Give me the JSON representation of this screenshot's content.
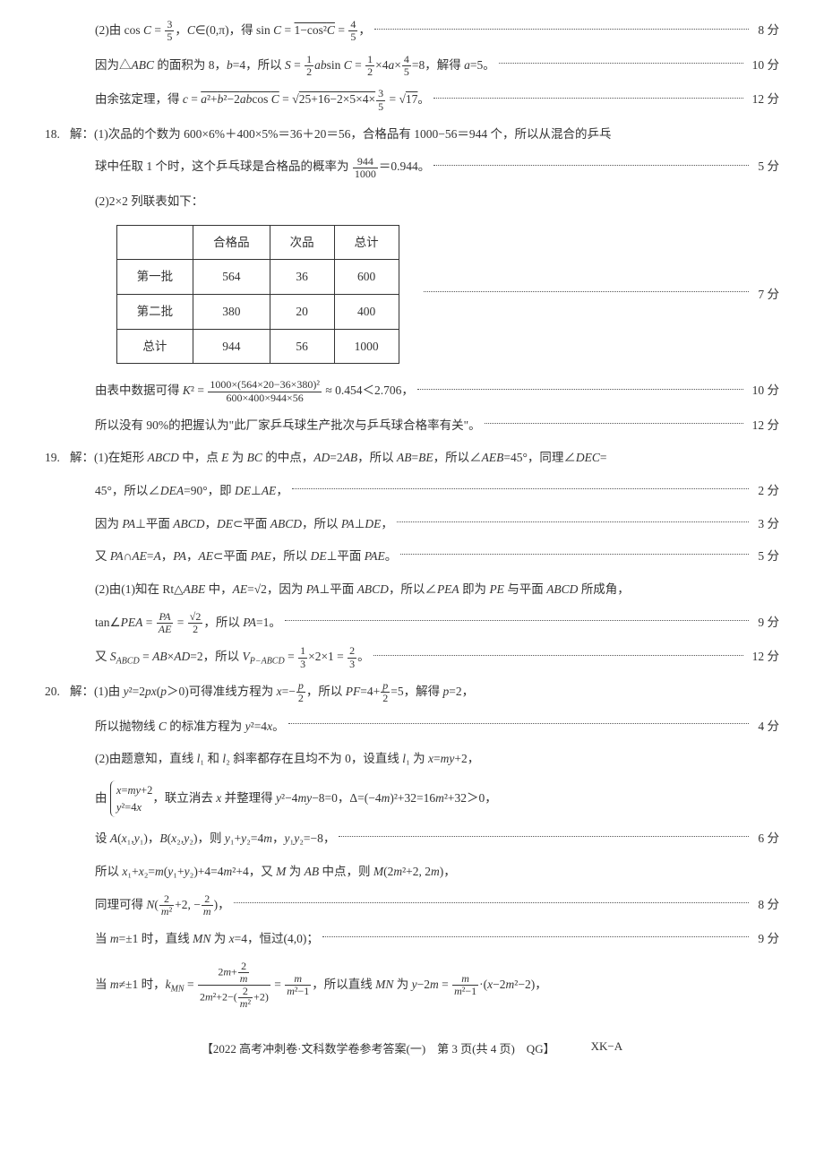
{
  "text_color": "#333333",
  "bg_color": "#ffffff",
  "table_border": "#333333",
  "dots_color": "#555555",
  "base_fontsize": 13.5,
  "q17": {
    "p2_lines": [
      {
        "txt": "(2)由 cos <span class='it'>C</span> = <span class='frac'><span class='num'>3</span><span class='den'>5</span></span>，<span class='it'>C</span>∈(0,π)，得 sin <span class='it'>C</span> = <span class='sqrt'>1−cos²<span class='it'>C</span></span> = <span class='frac'><span class='num'>4</span><span class='den'>5</span></span>，",
        "score": "8 分"
      },
      {
        "txt": "因为△<span class='it'>ABC</span> 的面积为 8，<span class='it'>b</span>=4，所以 <span class='it'>S</span> = <span class='frac'><span class='num'>1</span><span class='den'>2</span></span><span class='it'>ab</span>sin <span class='it'>C</span> = <span class='frac'><span class='num'>1</span><span class='den'>2</span></span>×4<span class='it'>a</span>×<span class='frac'><span class='num'>4</span><span class='den'>5</span></span>=8，解得 <span class='it'>a</span>=5。",
        "score": "10 分"
      },
      {
        "txt": "由余弦定理，得 <span class='it'>c</span> = <span class='sqrt'><span class='it'>a</span>²+<span class='it'>b</span>²−2<span class='it'>ab</span>cos <span class='it'>C</span></span> = <span style='font-size:14px'>√</span><span class='sqrt'>25+16−2×5×4×<span class='frac'><span class='num'>3</span><span class='den'>5</span></span></span> = √<span class='sqrt'>17</span>。",
        "score": "12 分"
      }
    ]
  },
  "q18": {
    "num": "18.",
    "p1": {
      "txt": "解：(1)次品的个数为 600×6%＋400×5%＝36＋20＝56，合格品有 1000−56＝944 个，所以从混合的乒乓",
      "score": ""
    },
    "p1b": {
      "txt": "球中任取 1 个时，这个乒乓球是合格品的概率为 <span class='frac'><span class='num'>944</span><span class='den'>1000</span></span>＝0.944。",
      "score": "5 分"
    },
    "p2_intro": "(2)2×2 列联表如下：",
    "table": {
      "headers": [
        "",
        "合格品",
        "次品",
        "总计"
      ],
      "rows": [
        [
          "第一批",
          "564",
          "36",
          "600"
        ],
        [
          "第二批",
          "380",
          "20",
          "400"
        ],
        [
          "总计",
          "944",
          "56",
          "1000"
        ]
      ],
      "side_score": "7 分"
    },
    "k2": {
      "txt": "由表中数据可得 <span class='it'>K</span>² = <span class='frac'><span class='num'>1000×(564×20−36×380)²</span><span class='den'>600×400×944×56</span></span> ≈ 0.454＜2.706，",
      "score": "10 分"
    },
    "conc": {
      "txt": "所以没有 90%的把握认为\"此厂家乒乓球生产批次与乒乓球合格率有关\"。",
      "score": "12 分"
    }
  },
  "q19": {
    "num": "19.",
    "lines": [
      {
        "txt": "解：(1)在矩形 <span class='it'>ABCD</span> 中，点 <span class='it'>E</span> 为 <span class='it'>BC</span> 的中点，<span class='it'>AD</span>=2<span class='it'>AB</span>，所以 <span class='it'>AB</span>=<span class='it'>BE</span>，所以∠<span class='it'>AEB</span>=45°，同理∠<span class='it'>DEC</span>=",
        "score": ""
      },
      {
        "txt": "45°，所以∠<span class='it'>DEA</span>=90°，即 <span class='it'>DE</span>⊥<span class='it'>AE</span>，",
        "score": "2 分"
      },
      {
        "txt": "因为 <span class='it'>PA</span>⊥平面 <span class='it'>ABCD</span>，<span class='it'>DE</span>⊂平面 <span class='it'>ABCD</span>，所以 <span class='it'>PA</span>⊥<span class='it'>DE</span>，",
        "score": "3 分"
      },
      {
        "txt": "又 <span class='it'>PA</span>∩<span class='it'>AE</span>=<span class='it'>A</span>，<span class='it'>PA</span>，<span class='it'>AE</span>⊂平面 <span class='it'>PAE</span>，所以 <span class='it'>DE</span>⊥平面 <span class='it'>PAE</span>。",
        "score": "5 分"
      },
      {
        "txt": "(2)由(1)知在 Rt△<span class='it'>ABE</span> 中，<span class='it'>AE</span>=√2，因为 <span class='it'>PA</span>⊥平面 <span class='it'>ABCD</span>，所以∠<span class='it'>PEA</span> 即为 <span class='it'>PE</span> 与平面 <span class='it'>ABCD</span> 所成角，",
        "score": ""
      },
      {
        "txt": "tan∠<span class='it'>PEA</span> = <span class='frac'><span class='num'><span class='it'>PA</span></span><span class='den'><span class='it'>AE</span></span></span> = <span class='frac'><span class='num'>√2</span><span class='den'>2</span></span>，所以 <span class='it'>PA</span>=1。",
        "score": "9 分"
      },
      {
        "txt": "又 <span class='it'>S<sub>ABCD</sub></span> = <span class='it'>AB</span>×<span class='it'>AD</span>=2，所以 <span class='it'>V<sub>P−ABCD</sub></span> = <span class='frac'><span class='num'>1</span><span class='den'>3</span></span>×2×1 = <span class='frac'><span class='num'>2</span><span class='den'>3</span></span>。",
        "score": "12 分"
      }
    ]
  },
  "q20": {
    "num": "20.",
    "lines": [
      {
        "txt": "解：(1)由 <span class='it'>y</span>²=2<span class='it'>px</span>(<span class='it'>p</span>＞0)可得准线方程为 <span class='it'>x</span>=−<span class='frac'><span class='num'><span class='it'>p</span></span><span class='den'>2</span></span>，所以 <span class='it'>PF</span>=4+<span class='frac'><span class='num'><span class='it'>p</span></span><span class='den'>2</span></span>=5，解得 <span class='it'>p</span>=2，",
        "score": ""
      },
      {
        "txt": "所以抛物线 <span class='it'>C</span> 的标准方程为 <span class='it'>y</span>²=4<span class='it'>x</span>。",
        "score": "4 分"
      },
      {
        "txt": "(2)由题意知，直线 <span class='it'>l</span>₁ 和 <span class='it'>l</span>₂ 斜率都存在且均不为 0，设直线 <span class='it'>l</span>₁ 为 <span class='it'>x</span>=<span class='it'>my</span>+2，",
        "score": ""
      },
      {
        "txt": "由 <span class='cases'><div><span class='it'>x</span>=<span class='it'>my</span>+2</div><div><span class='it'>y</span>²=4<span class='it'>x</span></div></span>，联立消去 <span class='it'>x</span> 并整理得 <span class='it'>y</span>²−4<span class='it'>my</span>−8=0，Δ=(−4<span class='it'>m</span>)²+32=16<span class='it'>m</span>²+32＞0，",
        "score": ""
      },
      {
        "txt": "设 <span class='it'>A</span>(<span class='it'>x</span>₁,<span class='it'>y</span>₁)，<span class='it'>B</span>(<span class='it'>x</span>₂,<span class='it'>y</span>₂)，则 <span class='it'>y</span>₁+<span class='it'>y</span>₂=4<span class='it'>m</span>，<span class='it'>y</span>₁<span class='it'>y</span>₂=−8，",
        "score": "6 分"
      },
      {
        "txt": "所以 <span class='it'>x</span>₁+<span class='it'>x</span>₂=<span class='it'>m</span>(<span class='it'>y</span>₁+<span class='it'>y</span>₂)+4=4<span class='it'>m</span>²+4，又 <span class='it'>M</span> 为 <span class='it'>AB</span> 中点，则 <span class='it'>M</span>(2<span class='it'>m</span>²+2, 2<span class='it'>m</span>)，",
        "score": ""
      },
      {
        "txt": "同理可得 <span class='it'>N</span>(<span class='frac'><span class='num'>2</span><span class='den'><span class='it'>m</span>²</span></span>+2, −<span class='frac'><span class='num'>2</span><span class='den'><span class='it'>m</span></span></span>)，",
        "score": "8 分"
      },
      {
        "txt": "当 <span class='it'>m</span>=±1 时，直线 <span class='it'>MN</span> 为 <span class='it'>x</span>=4，恒过(4,0)；",
        "score": "9 分"
      },
      {
        "txt": "当 <span class='it'>m</span>≠±1 时，<span class='it'>k<sub>MN</sub></span> = <span class='frac'><span class='num'>2<span class='it'>m</span>+<span class='frac'><span class='num'>2</span><span class='den'><span class='it'>m</span></span></span></span><span class='den'>2<span class='it'>m</span>²+2−(<span class='frac'><span class='num'>2</span><span class='den'><span class='it'>m</span>²</span></span>+2)</span></span> = <span class='frac'><span class='num'><span class='it'>m</span></span><span class='den'><span class='it'>m</span>²−1</span></span>，所以直线 <span class='it'>MN</span> 为 <span class='it'>y</span>−2<span class='it'>m</span> = <span class='frac'><span class='num'><span class='it'>m</span></span><span class='den'><span class='it'>m</span>²−1</span></span>·(<span class='it'>x</span>−2<span class='it'>m</span>²−2)，",
        "score": ""
      }
    ]
  },
  "footer": {
    "main": "【2022 高考冲刺卷·文科数学卷参考答案(一)　第 3 页(共 4 页)　QG】",
    "right": "XK−A"
  }
}
